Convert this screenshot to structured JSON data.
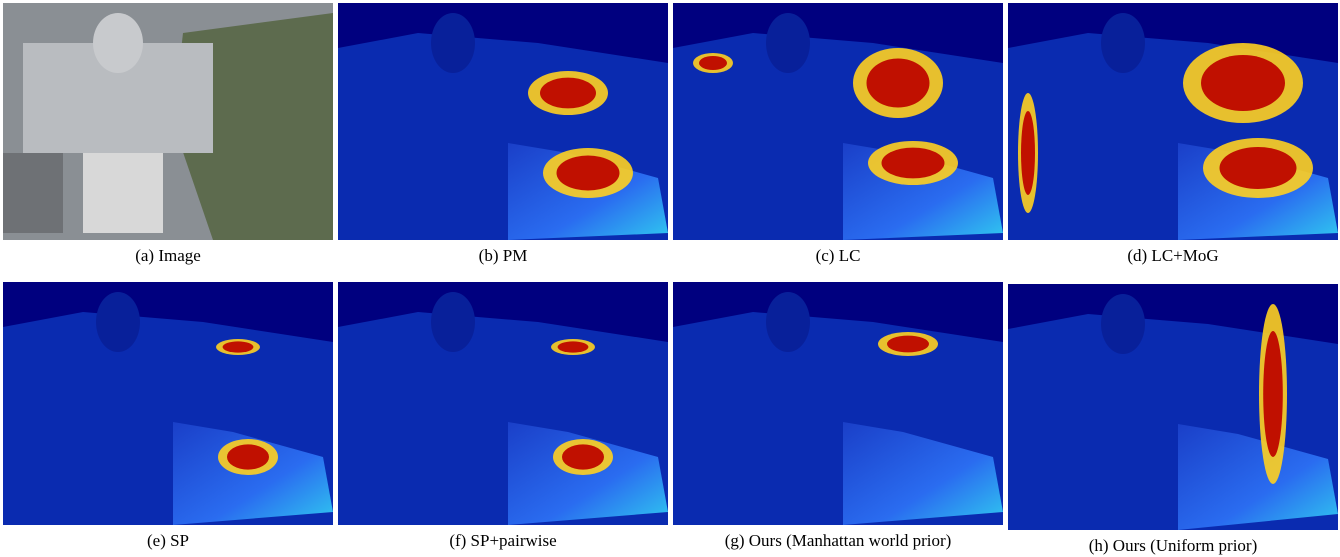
{
  "figure": {
    "panels": [
      {
        "caption": "(a) Image"
      },
      {
        "caption": "(b) PM"
      },
      {
        "caption": "(c) LC"
      },
      {
        "caption": "(d) LC+MoG"
      },
      {
        "caption": "(e) SP"
      },
      {
        "caption": "(f) SP+pairwise"
      },
      {
        "caption": "(g) Ours (Manhattan world prior)"
      },
      {
        "caption": "(h) Ours (Uniform prior)"
      }
    ]
  }
}
